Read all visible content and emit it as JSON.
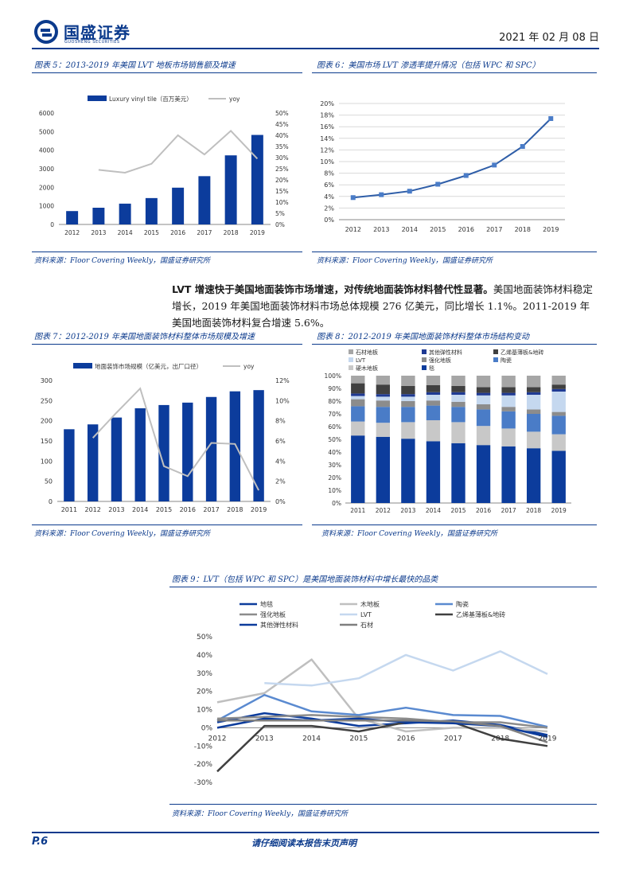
{
  "header": {
    "logo_text": "国盛证券",
    "logo_sub": "GUOSHENG SECURITIES",
    "date": "2021 年 02 月 08 日"
  },
  "fig5": {
    "caption": "图表 5：2013-2019 年美国 LVT 地板市场销售额及增速",
    "source": "资料来源：Floor Covering Weekly，国盛证券研究所"
  },
  "fig6": {
    "caption": "图表 6：美国市场 LVT 渗透率提升情况（包括 WPC 和 SPC）",
    "source": "资料来源：Floor Covering Weekly，国盛证券研究所"
  },
  "fig7": {
    "caption": "图表 7：2012-2019 年美国地面装饰材料整体市场规模及增速",
    "source": "资料来源：Floor Covering Weekly，国盛证券研究所"
  },
  "fig8": {
    "caption": "图表 8：2012-2019 年美国地面装饰材料整体市场结构变动",
    "source": "资料来源：Floor Covering Weekly，国盛证券研究所"
  },
  "fig9": {
    "caption": "图表 9：LVT（包括 WPC 和 SPC）是美国地面装饰材料中增长最快的品类",
    "source": "资料来源：Floor Covering Weekly，国盛证券研究所"
  },
  "paragraph": {
    "bold": "LVT 增速快于美国地面装饰市场增速，对传统地面装饰材料替代性显著。",
    "rest": "美国地面装饰材料稳定增长，2019 年美国地面装饰材料市场总体规模 276 亿美元，同比增长 1.1%。2011-2019 年美国地面装饰材料复合增速 5.6%。"
  },
  "footer": {
    "page": "P.6",
    "notice": "请仔细阅读本报告末页声明"
  },
  "colors": {
    "brand": "#0b3a8c",
    "bar": "#0c3c9c",
    "yoy": "#bfbfbf"
  },
  "chart_data": [
    {
      "id": "fig5",
      "type": "bar",
      "categories": [
        "2012",
        "2013",
        "2014",
        "2015",
        "2016",
        "2017",
        "2018",
        "2019"
      ],
      "series": [
        {
          "name": "Luxury vinyl tile（百万美元）",
          "kind": "bar",
          "values": [
            720,
            900,
            1120,
            1420,
            1980,
            2600,
            3720,
            4820
          ]
        },
        {
          "name": "yoy",
          "kind": "line",
          "axis": "right",
          "values": [
            null,
            0.245,
            0.232,
            0.272,
            0.4,
            0.314,
            0.42,
            0.295
          ]
        }
      ],
      "yticks_left": [
        "0",
        "1000",
        "2000",
        "3000",
        "4000",
        "5000",
        "6000"
      ],
      "yticks_right": [
        "0%",
        "5%",
        "10%",
        "15%",
        "20%",
        "25%",
        "30%",
        "35%",
        "40%",
        "45%",
        "50%"
      ],
      "ylim_left": [
        0,
        6000
      ],
      "ylim_right": [
        0,
        0.5
      ]
    },
    {
      "id": "fig6",
      "type": "line",
      "categories": [
        "2012",
        "2013",
        "2014",
        "2015",
        "2016",
        "2017",
        "2018",
        "2019"
      ],
      "series": [
        {
          "name": "LVT渗透率",
          "values": [
            0.038,
            0.043,
            0.049,
            0.061,
            0.076,
            0.094,
            0.126,
            0.174
          ]
        }
      ],
      "yticks": [
        "0%",
        "2%",
        "4%",
        "6%",
        "8%",
        "10%",
        "12%",
        "14%",
        "16%",
        "18%",
        "20%"
      ],
      "ylim": [
        0,
        0.2
      ]
    },
    {
      "id": "fig7",
      "type": "bar",
      "categories": [
        "2011",
        "2012",
        "2013",
        "2014",
        "2015",
        "2016",
        "2017",
        "2018",
        "2019"
      ],
      "series": [
        {
          "name": "地面装饰市场规模（亿美元，出厂口径）",
          "kind": "bar",
          "values": [
            179,
            191,
            208,
            231,
            239,
            245,
            259,
            273,
            276
          ]
        },
        {
          "name": "yoy",
          "kind": "line",
          "axis": "right",
          "values": [
            null,
            0.063,
            0.088,
            0.112,
            0.035,
            0.025,
            0.058,
            0.057,
            0.011
          ]
        }
      ],
      "yticks_left": [
        "0",
        "50",
        "100",
        "150",
        "200",
        "250",
        "300"
      ],
      "yticks_right": [
        "0%",
        "2%",
        "4%",
        "6%",
        "8%",
        "10%",
        "12%"
      ],
      "ylim_left": [
        0,
        300
      ],
      "ylim_right": [
        0,
        0.12
      ]
    },
    {
      "id": "fig8",
      "type": "bar",
      "stacked": true,
      "categories": [
        "2011",
        "2012",
        "2013",
        "2014",
        "2015",
        "2016",
        "2017",
        "2018",
        "2019"
      ],
      "series": [
        {
          "name": "毯",
          "color": "#0c3c9c",
          "values": [
            0.53,
            0.52,
            0.505,
            0.485,
            0.47,
            0.455,
            0.445,
            0.43,
            0.41
          ]
        },
        {
          "name": "硬木地板",
          "color": "#c8c8c8",
          "values": [
            0.11,
            0.11,
            0.13,
            0.165,
            0.165,
            0.15,
            0.14,
            0.13,
            0.13
          ]
        },
        {
          "name": "陶瓷",
          "color": "#4a7cc7",
          "values": [
            0.12,
            0.125,
            0.12,
            0.115,
            0.12,
            0.13,
            0.135,
            0.14,
            0.145
          ]
        },
        {
          "name": "强化地板",
          "color": "#8c8c8c",
          "values": [
            0.055,
            0.05,
            0.045,
            0.04,
            0.04,
            0.04,
            0.035,
            0.035,
            0.03
          ]
        },
        {
          "name": "LVT",
          "color": "#c5d8ef",
          "values": [
            0.025,
            0.03,
            0.035,
            0.045,
            0.055,
            0.07,
            0.09,
            0.115,
            0.16
          ]
        },
        {
          "name": "其他弹性材料",
          "color": "#1f3a93",
          "values": [
            0.02,
            0.02,
            0.02,
            0.02,
            0.02,
            0.02,
            0.02,
            0.02,
            0.02
          ]
        },
        {
          "name": "乙烯基薄板&地砖",
          "color": "#404040",
          "values": [
            0.08,
            0.075,
            0.065,
            0.055,
            0.05,
            0.045,
            0.045,
            0.04,
            0.035
          ]
        },
        {
          "name": "石材地板",
          "color": "#a6a6a6",
          "values": [
            0.06,
            0.07,
            0.08,
            0.075,
            0.08,
            0.09,
            0.09,
            0.09,
            0.07
          ]
        }
      ],
      "yticks": [
        "0%",
        "10%",
        "20%",
        "30%",
        "40%",
        "50%",
        "60%",
        "70%",
        "80%",
        "90%",
        "100%"
      ],
      "ylim": [
        0,
        1
      ]
    },
    {
      "id": "fig9",
      "type": "line",
      "categories": [
        "2012",
        "2013",
        "2014",
        "2015",
        "2016",
        "2017",
        "2018",
        "2019"
      ],
      "series": [
        {
          "name": "地毯",
          "color": "#0c3c9c",
          "width": 2.5,
          "values": [
            0.03,
            0.08,
            0.05,
            0.01,
            0.025,
            0.04,
            0.015,
            -0.04
          ]
        },
        {
          "name": "木地板",
          "color": "#bfbfbf",
          "width": 2.5,
          "values": [
            0.14,
            0.19,
            0.375,
            0.05,
            -0.02,
            0.0,
            0.0,
            -0.02
          ]
        },
        {
          "name": "陶瓷",
          "color": "#5a8ad0",
          "width": 2.5,
          "values": [
            0.04,
            0.18,
            0.09,
            0.07,
            0.11,
            0.07,
            0.065,
            0.005
          ]
        },
        {
          "name": "强化地板",
          "color": "#8c8c8c",
          "width": 2.5,
          "values": [
            0.05,
            0.06,
            0.07,
            0.06,
            0.05,
            0.03,
            0.03,
            0.0
          ]
        },
        {
          "name": "LVT",
          "color": "#c5d8ef",
          "width": 2.5,
          "values": [
            null,
            0.245,
            0.232,
            0.272,
            0.4,
            0.314,
            0.42,
            0.295
          ]
        },
        {
          "name": "乙烯基薄板&地砖",
          "color": "#404040",
          "width": 2.5,
          "values": [
            -0.24,
            0.01,
            0.01,
            -0.02,
            0.03,
            0.03,
            -0.06,
            -0.1
          ]
        },
        {
          "name": "其他弹性材料",
          "color": "#0c3c9c",
          "width": 2.5,
          "values": [
            0.0,
            0.05,
            0.04,
            0.05,
            0.03,
            0.025,
            0.01,
            -0.05
          ]
        },
        {
          "name": "石材",
          "color": "#7f7f7f",
          "width": 2.5,
          "values": [
            0.04,
            0.04,
            0.04,
            0.04,
            0.04,
            0.035,
            0.01,
            -0.08
          ]
        }
      ],
      "yticks": [
        "-30%",
        "-20%",
        "-10%",
        "0%",
        "10%",
        "20%",
        "30%",
        "40%",
        "50%"
      ],
      "ylim": [
        -0.3,
        0.5
      ]
    }
  ]
}
